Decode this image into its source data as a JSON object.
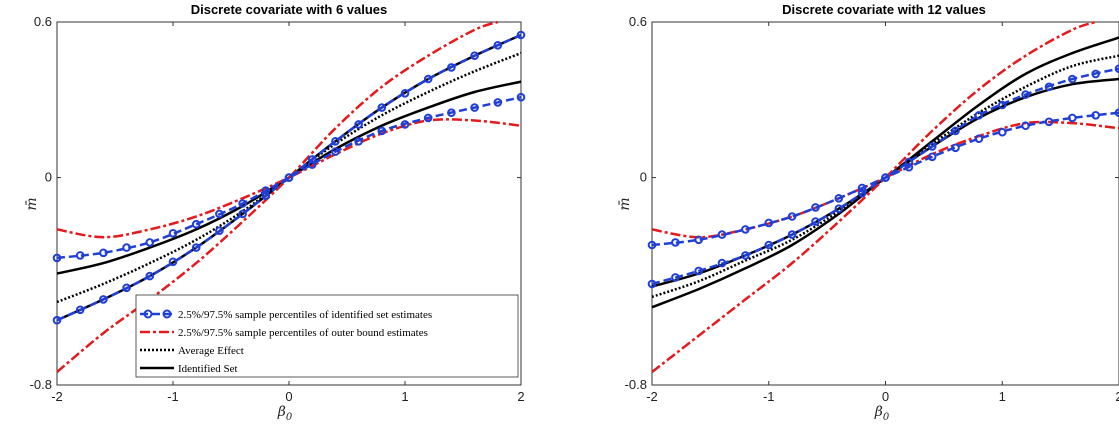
{
  "chart_data": [
    {
      "type": "line",
      "title": "Discrete covariate with 6 values",
      "xlabel": "β",
      "xlabel_sub": "0",
      "ylabel": "m̄",
      "xlim": [
        -2,
        2
      ],
      "ylim": [
        -0.8,
        0.6
      ],
      "xticks": [
        -2,
        -1,
        0,
        1,
        2
      ],
      "yticks": [
        -0.8,
        0,
        0.6
      ],
      "ytick_labels": [
        "-0.8",
        "0",
        "0.6"
      ],
      "grid": false,
      "legend": "bottom-right",
      "series": [
        {
          "name": "Identified Set",
          "style": "solid",
          "color": "#000000",
          "role": "upper",
          "x": [
            -2,
            -1.6,
            -1.2,
            -0.8,
            -0.4,
            0,
            0.4,
            0.8,
            1.2,
            1.6,
            2
          ],
          "y": [
            -0.55,
            -0.47,
            -0.38,
            -0.27,
            -0.14,
            0,
            0.14,
            0.27,
            0.38,
            0.47,
            0.55
          ]
        },
        {
          "name": "",
          "style": "solid",
          "color": "#000000",
          "role": "lower",
          "x": [
            -2,
            -1.6,
            -1.2,
            -0.8,
            -0.4,
            0,
            0.4,
            0.8,
            1.2,
            1.6,
            2
          ],
          "y": [
            -0.37,
            -0.33,
            -0.27,
            -0.2,
            -0.11,
            0,
            0.11,
            0.2,
            0.27,
            0.33,
            0.37
          ]
        },
        {
          "name": "Average Effect",
          "style": "dotted",
          "color": "#000000",
          "x": [
            -2,
            -1.6,
            -1.2,
            -0.8,
            -0.4,
            0,
            0.4,
            0.8,
            1.2,
            1.6,
            2
          ],
          "y": [
            -0.48,
            -0.41,
            -0.33,
            -0.24,
            -0.13,
            0,
            0.13,
            0.24,
            0.33,
            0.41,
            0.48
          ]
        },
        {
          "name": "2.5%/97.5% sample percentiles of outer bound estimates",
          "style": "dashdot",
          "color": "#e41a1c",
          "role": "upper",
          "x": [
            -2,
            -1.6,
            -1.2,
            -0.8,
            -0.4,
            0,
            0.4,
            0.8,
            1.2,
            1.6,
            1.8
          ],
          "y": [
            -0.75,
            -0.6,
            -0.47,
            -0.33,
            -0.17,
            0,
            0.19,
            0.35,
            0.47,
            0.57,
            0.6
          ]
        },
        {
          "name": "",
          "style": "dashdot",
          "color": "#e41a1c",
          "role": "lower",
          "x": [
            -2,
            -1.6,
            -1.2,
            -0.8,
            -0.4,
            0,
            0.4,
            0.8,
            1.2,
            1.6,
            2
          ],
          "y": [
            -0.2,
            -0.23,
            -0.2,
            -0.15,
            -0.08,
            0,
            0.09,
            0.17,
            0.22,
            0.22,
            0.2
          ]
        },
        {
          "name": "2.5%/97.5% sample percentiles of identified set estimates",
          "style": "dashed-markers",
          "color": "#1f3fd6",
          "role": "upper",
          "x": [
            -2,
            -1.6,
            -1.2,
            -0.8,
            -0.4,
            0,
            0.4,
            0.8,
            1.2,
            1.6,
            2
          ],
          "y": [
            -0.55,
            -0.47,
            -0.38,
            -0.27,
            -0.14,
            0,
            0.14,
            0.27,
            0.38,
            0.47,
            0.55
          ]
        },
        {
          "name": "",
          "style": "dashed-markers",
          "color": "#1f3fd6",
          "role": "lower",
          "x": [
            -2,
            -1.6,
            -1.2,
            -0.8,
            -0.4,
            0,
            0.4,
            0.8,
            1.2,
            1.6,
            2
          ],
          "y": [
            -0.31,
            -0.29,
            -0.25,
            -0.18,
            -0.1,
            0,
            0.1,
            0.18,
            0.23,
            0.27,
            0.31
          ]
        }
      ]
    },
    {
      "type": "line",
      "title": "Discrete covariate with 12 values",
      "xlabel": "β",
      "xlabel_sub": "0",
      "ylabel": "m̄",
      "xlim": [
        -2,
        2
      ],
      "ylim": [
        -0.8,
        0.6
      ],
      "xticks": [
        -2,
        -1,
        0,
        1,
        2
      ],
      "yticks": [
        -0.8,
        0,
        0.6
      ],
      "ytick_labels": [
        "-0.8",
        "0",
        "0.6"
      ],
      "grid": false,
      "series": [
        {
          "name": "Identified Set",
          "style": "solid",
          "color": "#000000",
          "role": "upper",
          "x": [
            -2,
            -1.6,
            -1.2,
            -0.8,
            -0.4,
            0,
            0.4,
            0.8,
            1.2,
            1.6,
            2
          ],
          "y": [
            -0.42,
            -0.37,
            -0.3,
            -0.22,
            -0.12,
            0,
            0.14,
            0.28,
            0.4,
            0.48,
            0.54
          ]
        },
        {
          "name": "",
          "style": "solid",
          "color": "#000000",
          "role": "lower",
          "x": [
            -2,
            -1.6,
            -1.2,
            -0.8,
            -0.4,
            0,
            0.4,
            0.8,
            1.2,
            1.6,
            2
          ],
          "y": [
            -0.5,
            -0.43,
            -0.35,
            -0.26,
            -0.14,
            0,
            0.12,
            0.23,
            0.31,
            0.36,
            0.38
          ]
        },
        {
          "name": "Average Effect",
          "style": "dotted",
          "color": "#000000",
          "x": [
            -2,
            -1.6,
            -1.2,
            -0.8,
            -0.4,
            0,
            0.4,
            0.8,
            1.2,
            1.6,
            2
          ],
          "y": [
            -0.46,
            -0.4,
            -0.32,
            -0.24,
            -0.13,
            0,
            0.13,
            0.25,
            0.35,
            0.43,
            0.47
          ]
        },
        {
          "name": "2.5%/97.5% sample percentiles of outer bound estimates",
          "style": "dashdot",
          "color": "#e41a1c",
          "role": "upper",
          "x": [
            -2,
            -1.6,
            -1.2,
            -0.8,
            -0.4,
            0,
            0.4,
            0.8,
            1.2,
            1.6,
            1.8
          ],
          "y": [
            -0.75,
            -0.61,
            -0.47,
            -0.33,
            -0.17,
            0,
            0.18,
            0.34,
            0.47,
            0.57,
            0.6
          ]
        },
        {
          "name": "",
          "style": "dashdot",
          "color": "#e41a1c",
          "role": "lower",
          "x": [
            -2,
            -1.6,
            -1.2,
            -0.8,
            -0.4,
            0,
            0.4,
            0.8,
            1.2,
            1.6,
            2
          ],
          "y": [
            -0.2,
            -0.23,
            -0.2,
            -0.15,
            -0.08,
            0,
            0.09,
            0.16,
            0.21,
            0.21,
            0.19
          ]
        },
        {
          "name": "2.5%/97.5% sample percentiles of identified set estimates",
          "style": "dashed-markers",
          "color": "#1f3fd6",
          "role": "upper",
          "x": [
            -2,
            -1.6,
            -1.2,
            -0.8,
            -0.4,
            0,
            0.4,
            0.8,
            1.2,
            1.6,
            2
          ],
          "y": [
            -0.41,
            -0.36,
            -0.3,
            -0.22,
            -0.12,
            0,
            0.12,
            0.24,
            0.32,
            0.38,
            0.42
          ]
        },
        {
          "name": "",
          "style": "dashed-markers",
          "color": "#1f3fd6",
          "role": "lower",
          "x": [
            -2,
            -1.6,
            -1.2,
            -0.8,
            -0.4,
            0,
            0.4,
            0.8,
            1.2,
            1.6,
            2
          ],
          "y": [
            -0.26,
            -0.24,
            -0.2,
            -0.15,
            -0.08,
            0,
            0.08,
            0.15,
            0.2,
            0.23,
            0.25
          ]
        }
      ]
    }
  ],
  "legend": {
    "entries": [
      {
        "label": "2.5%/97.5% sample percentiles of identified set estimates",
        "style": "dashed-markers",
        "color": "#1f3fd6"
      },
      {
        "label": "2.5%/97.5% sample percentiles of outer bound estimates",
        "style": "dashdot",
        "color": "#e41a1c"
      },
      {
        "label": "Average Effect",
        "style": "dotted",
        "color": "#000000"
      },
      {
        "label": "Identified Set",
        "style": "solid",
        "color": "#000000"
      }
    ]
  }
}
